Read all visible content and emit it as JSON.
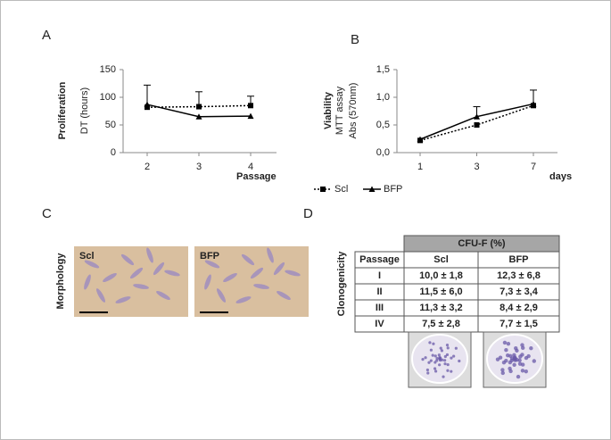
{
  "chart_data": [
    {
      "type": "line",
      "panel": "A",
      "ylabel": [
        "Proliferation",
        "DT (hours)"
      ],
      "xlabel": "Passage",
      "categories": [
        "2",
        "3",
        "4"
      ],
      "ylim": [
        0,
        150
      ],
      "yticks": [
        0,
        50,
        100,
        150
      ],
      "series": [
        {
          "color": "#000000",
          "style": "dotted",
          "marker": "square",
          "values": [
            82,
            83,
            85
          ],
          "errors": [
            null,
            27,
            17
          ]
        },
        {
          "color": "#000000",
          "style": "solid",
          "marker": "triangle",
          "values": [
            87,
            65,
            66
          ],
          "errors": [
            35,
            null,
            null
          ]
        }
      ]
    },
    {
      "type": "line",
      "panel": "B",
      "ylabel": [
        "Viability",
        "MTT assay",
        "Abs (570nm)"
      ],
      "xlabel": "days",
      "categories": [
        "1",
        "3",
        "7"
      ],
      "ylim": [
        0,
        1.5
      ],
      "yticks": [
        {
          "value": 0,
          "label": "0,0"
        },
        {
          "value": 0.5,
          "label": "0,5"
        },
        {
          "value": 1,
          "label": "1,0"
        },
        {
          "value": 1.5,
          "label": "1,5"
        }
      ],
      "series": [
        {
          "name": "Scl",
          "color": "#000000",
          "style": "dotted",
          "marker": "square",
          "values": [
            0.22,
            0.5,
            0.85
          ],
          "errors": [
            null,
            null,
            null
          ]
        },
        {
          "name": "BFP",
          "color": "#000000",
          "style": "solid",
          "marker": "triangle",
          "values": [
            0.24,
            0.65,
            0.88
          ],
          "errors": [
            null,
            0.18,
            0.25
          ]
        }
      ]
    }
  ],
  "morphology": {
    "panel": "C",
    "label": "Morphology",
    "images": [
      "Scl",
      "BFP"
    ]
  },
  "clonogenicity": {
    "panel": "D",
    "label": "Clonogenicity",
    "table": {
      "header": "CFU-F (%)",
      "columns": [
        "Passage",
        "Scl",
        "BFP"
      ],
      "rows": [
        [
          "I",
          "10,0 ± 1,8",
          "12,3 ± 6,8"
        ],
        [
          "II",
          "11,5 ± 6,0",
          "7,3 ± 3,4"
        ],
        [
          "III",
          "11,3 ± 3,2",
          "8,4 ± 2,9"
        ],
        [
          "IV",
          "7,5 ± 2,8",
          "7,7 ± 1,5"
        ]
      ]
    }
  }
}
